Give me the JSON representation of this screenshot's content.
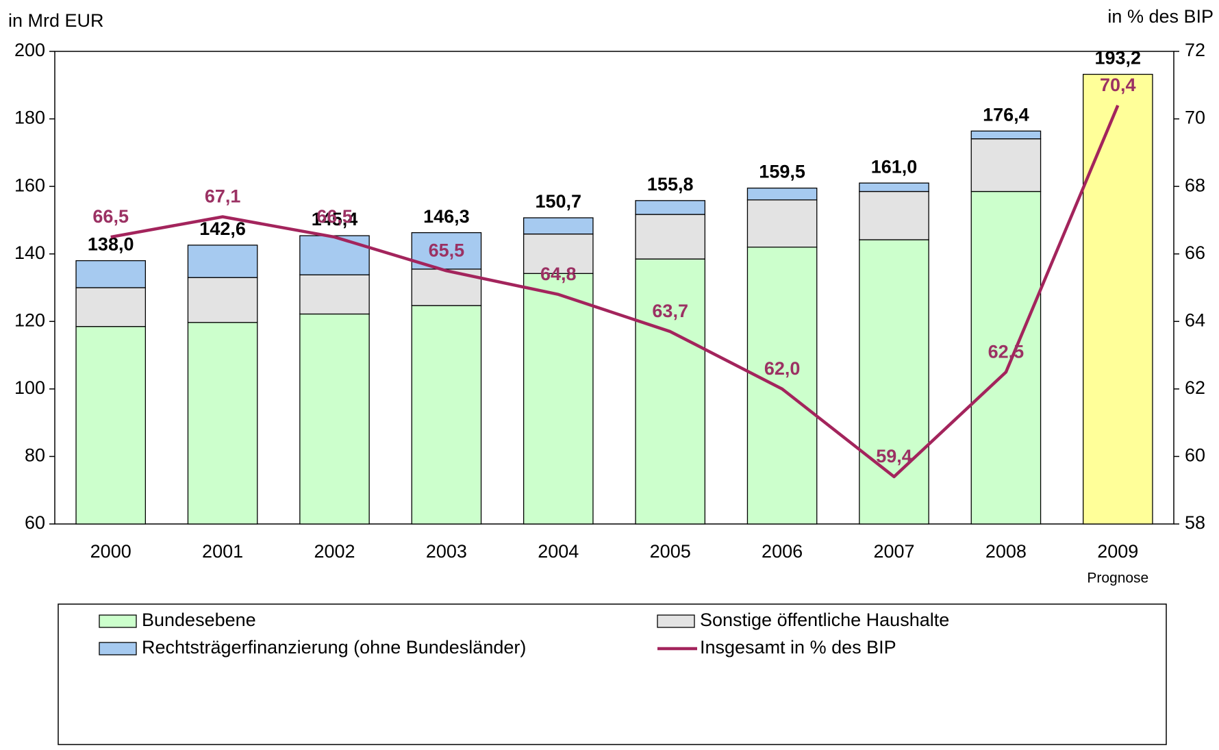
{
  "chart_data": {
    "type": "bar",
    "y_axis_label": "in Mrd EUR",
    "y2_axis_label": "in % des BIP",
    "categories": [
      "2000",
      "2001",
      "2002",
      "2003",
      "2004",
      "2005",
      "2006",
      "2007",
      "2008",
      "2009"
    ],
    "annotation": "Prognose",
    "stacked": true,
    "series": [
      {
        "name": "Bundesebene",
        "color": "#ccffcc",
        "values": [
          118.5,
          119.7,
          122.2,
          124.7,
          134.2,
          138.5,
          142.0,
          144.2,
          158.5,
          null
        ]
      },
      {
        "name": "Sonstige öffentliche Haushalte",
        "color": "#e3e3e3",
        "values": [
          11.5,
          13.3,
          11.6,
          10.8,
          11.7,
          13.2,
          14.0,
          14.3,
          15.6,
          null
        ]
      },
      {
        "name": "Rechtsträgerfinanzierung (ohne Bundesländer)",
        "color": "#a6caf0",
        "values": [
          8.0,
          9.6,
          11.6,
          10.8,
          4.8,
          4.1,
          3.5,
          2.5,
          2.3,
          null
        ]
      },
      {
        "name": "Insgesamt in % des BIP",
        "type": "line",
        "axis": "y2",
        "color": "#a3245c",
        "label_color": "#9b3163",
        "values": [
          66.5,
          67.1,
          66.5,
          65.5,
          64.8,
          63.7,
          62.0,
          59.4,
          62.5,
          70.4
        ],
        "value_labels": [
          "66,5",
          "67,1",
          "66,5",
          "65,5",
          "64,8",
          "63,7",
          "62,0",
          "59,4",
          "62,5",
          "70,4"
        ]
      }
    ],
    "totals": {
      "values": [
        138.0,
        142.6,
        145.4,
        146.3,
        150.7,
        155.8,
        159.5,
        161.0,
        176.4,
        193.2
      ],
      "value_labels": [
        "138,0",
        "142,6",
        "145,4",
        "146,3",
        "150,7",
        "155,8",
        "159,5",
        "161,0",
        "176,4",
        "193,2"
      ],
      "forecast_color": "#ffff99"
    },
    "ylim": [
      60,
      200
    ],
    "yticks": [
      60,
      80,
      100,
      120,
      140,
      160,
      180,
      200
    ],
    "y2lim": [
      58,
      72
    ],
    "y2ticks": [
      58,
      60,
      62,
      64,
      66,
      68,
      70,
      72
    ],
    "grid": false
  }
}
